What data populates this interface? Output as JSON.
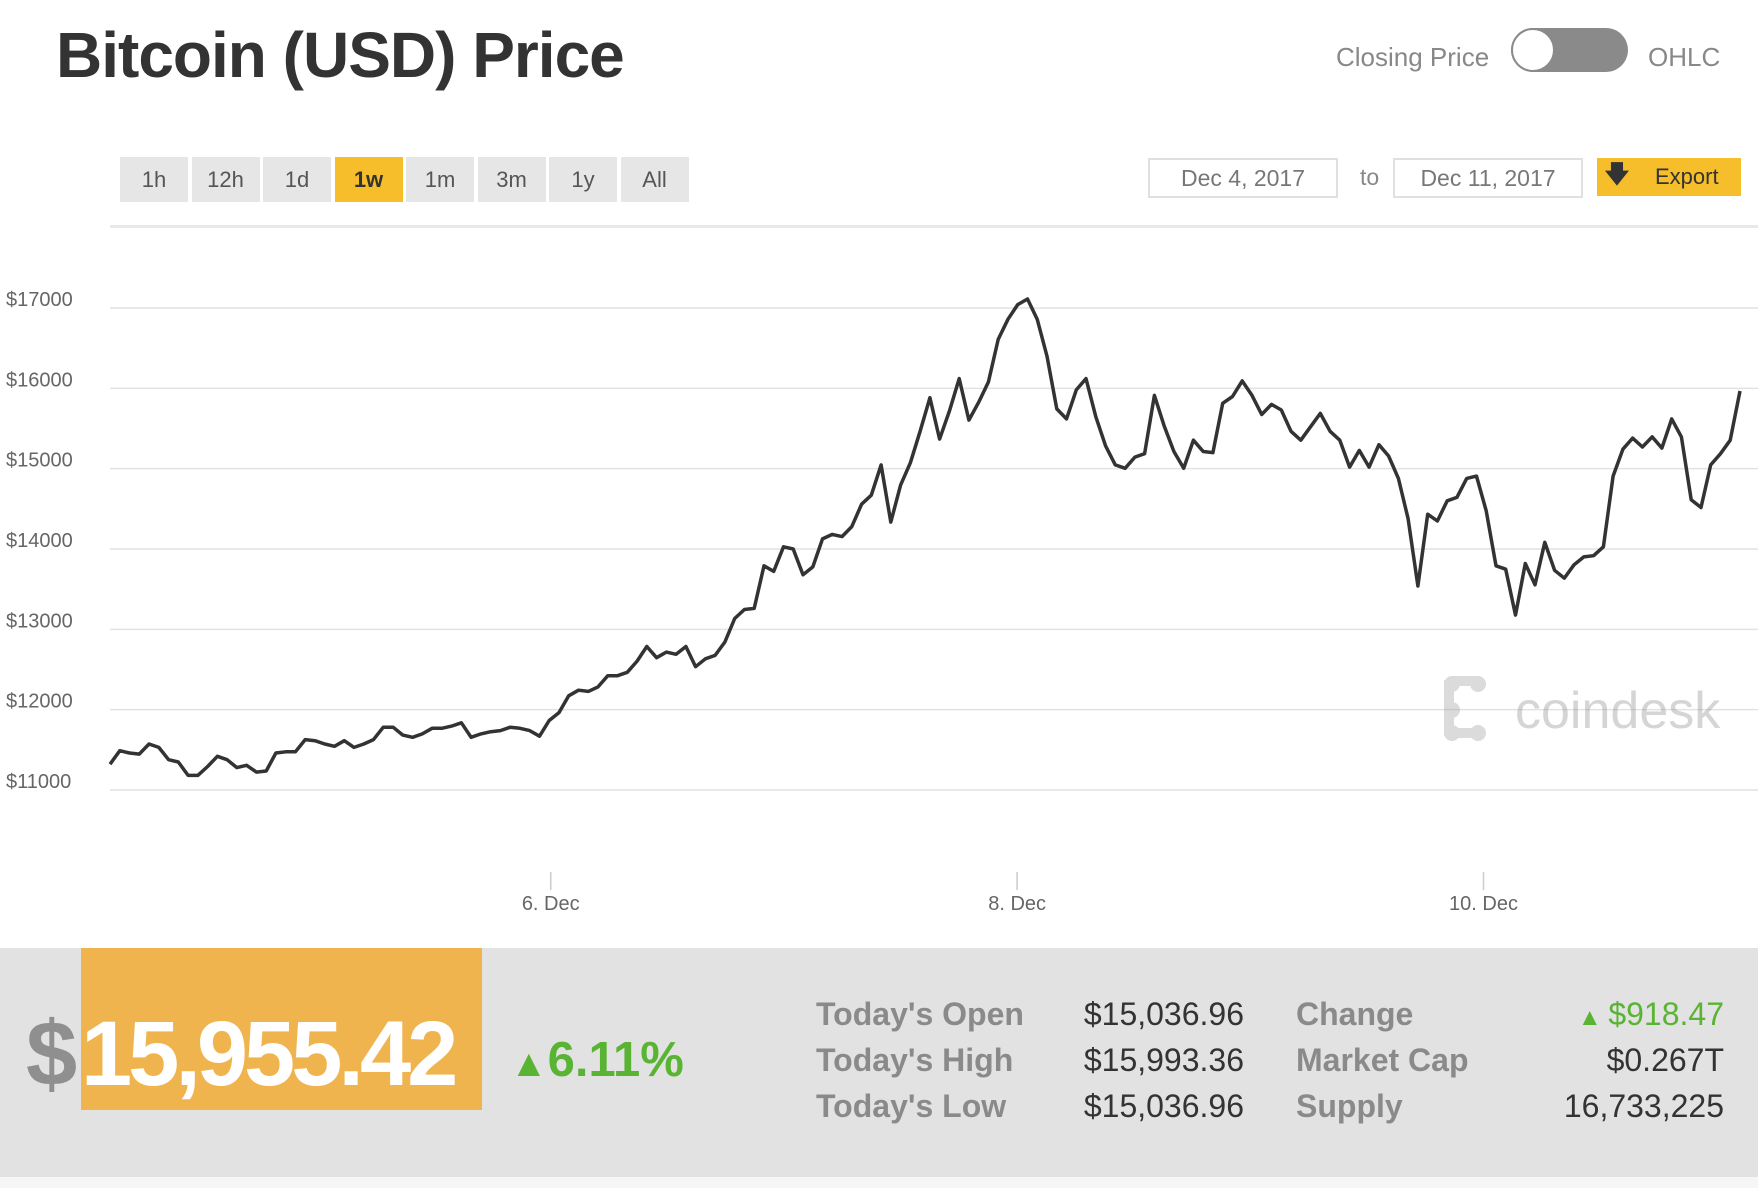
{
  "header": {
    "title": "Bitcoin (USD) Price",
    "toggle_left": "Closing Price",
    "toggle_right": "OHLC"
  },
  "ranges": [
    {
      "label": "1h"
    },
    {
      "label": "12h"
    },
    {
      "label": "1d"
    },
    {
      "label": "1w",
      "active": true
    },
    {
      "label": "1m"
    },
    {
      "label": "3m"
    },
    {
      "label": "1y"
    },
    {
      "label": "All"
    }
  ],
  "date_range": {
    "from": "Dec 4, 2017",
    "to_label": "to",
    "to": "Dec 11, 2017",
    "export_label": "Export",
    "export_icon": "download-arrow-icon"
  },
  "watermark": "coindesk",
  "colors": {
    "accent": "#f7be2b",
    "price_box": "#f0b44e",
    "up": "#5ab434",
    "line": "#333333"
  },
  "summary": {
    "currency_symbol": "$",
    "price": "15,955.42",
    "change_pct": "6.11%",
    "direction": "up",
    "stats": [
      {
        "label": "Today's Open",
        "value": "$15,036.96"
      },
      {
        "label": "Today's High",
        "value": "$15,993.36"
      },
      {
        "label": "Today's Low",
        "value": "$15,036.96"
      }
    ],
    "stats2": [
      {
        "label": "Change",
        "value": "$918.47",
        "up": true
      },
      {
        "label": "Market Cap",
        "value": "$0.267T"
      },
      {
        "label": "Supply",
        "value": "16,733,225"
      }
    ]
  },
  "chart_data": {
    "type": "line",
    "title": "Bitcoin (USD) Price",
    "xlabel": "",
    "ylabel": "",
    "ylim": [
      11000,
      17000
    ],
    "yticks": [
      "$17000",
      "$16000",
      "$15000",
      "$14000",
      "$13000",
      "$12000",
      "$11000"
    ],
    "ytick_values": [
      17000,
      16000,
      15000,
      14000,
      13000,
      12000,
      11000
    ],
    "xlim_days": [
      4.11,
      11.1
    ],
    "xticks": [
      {
        "label": "6. Dec",
        "day": 6
      },
      {
        "label": "8. Dec",
        "day": 8
      },
      {
        "label": "10. Dec",
        "day": 10
      }
    ],
    "grid": true,
    "legend": "none",
    "series": [
      {
        "name": "Closing Price",
        "values": [
          11321,
          11489,
          11461,
          11447,
          11572,
          11530,
          11377,
          11349,
          11182,
          11182,
          11293,
          11419,
          11377,
          11279,
          11307,
          11223,
          11237,
          11461,
          11475,
          11475,
          11628,
          11614,
          11572,
          11544,
          11614,
          11530,
          11572,
          11628,
          11782,
          11782,
          11684,
          11656,
          11698,
          11768,
          11768,
          11796,
          11837,
          11656,
          11698,
          11726,
          11740,
          11782,
          11768,
          11740,
          11670,
          11865,
          11963,
          12172,
          12242,
          12228,
          12284,
          12423,
          12423,
          12465,
          12605,
          12786,
          12647,
          12716,
          12689,
          12786,
          12535,
          12633,
          12675,
          12842,
          13135,
          13247,
          13261,
          13791,
          13721,
          14028,
          14000,
          13679,
          13777,
          14126,
          14182,
          14154,
          14279,
          14558,
          14670,
          15047,
          14335,
          14795,
          15074,
          15465,
          15884,
          15368,
          15716,
          16121,
          15605,
          15828,
          16079,
          16609,
          16860,
          17042,
          17112,
          16860,
          16400,
          15744,
          15619,
          15981,
          16121,
          15647,
          15284,
          15047,
          15005,
          15144,
          15186,
          15912,
          15535,
          15214,
          15005,
          15354,
          15214,
          15200,
          15814,
          15898,
          16093,
          15912,
          15674,
          15800,
          15730,
          15465,
          15354,
          15521,
          15688,
          15465,
          15354,
          15019,
          15228,
          15019,
          15298,
          15158,
          14879,
          14377,
          13540,
          14433,
          14349,
          14600,
          14642,
          14879,
          14907,
          14475,
          13791,
          13749,
          13177,
          13819,
          13554,
          14084,
          13735,
          13637,
          13805,
          13902,
          13916,
          14028,
          14907,
          15242,
          15381,
          15270,
          15395,
          15256,
          15619,
          15395,
          14614,
          14516,
          15047,
          15186,
          15354,
          15967
        ]
      }
    ]
  }
}
